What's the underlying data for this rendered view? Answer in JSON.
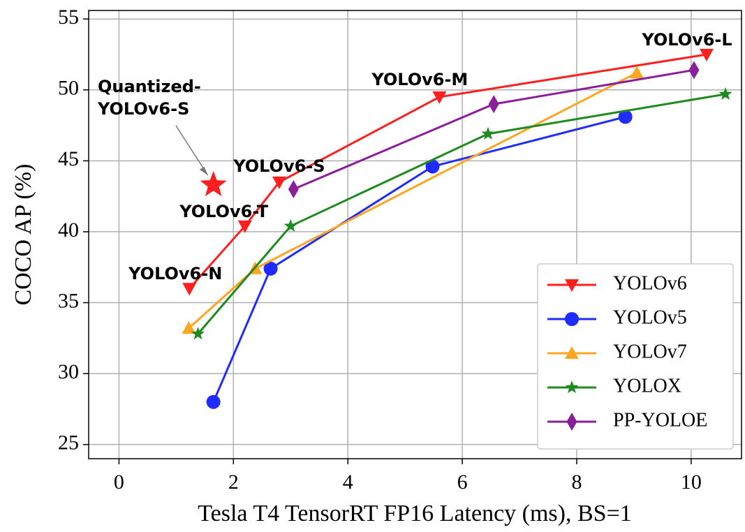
{
  "chart_data": {
    "type": "line",
    "xlabel": "Tesla T4 TensorRT FP16 Latency (ms), BS=1",
    "ylabel": "COCO AP (%)",
    "xlim": [
      -0.53,
      10.88
    ],
    "xticks": [
      0,
      2,
      4,
      6,
      8,
      10
    ],
    "ylim": [
      24,
      55.6
    ],
    "yticks": [
      25,
      30,
      35,
      40,
      45,
      50,
      55
    ],
    "grid": true,
    "legend": "lower right",
    "series": [
      {
        "name": "YOLOv6",
        "color": "#ff1f1f",
        "marker": "triangle-down",
        "x": [
          1.23,
          2.2,
          2.8,
          5.6,
          10.27
        ],
        "values": [
          36.0,
          40.4,
          43.5,
          49.5,
          52.5
        ]
      },
      {
        "name": "YOLOv5",
        "color": "#1f2cff",
        "marker": "circle",
        "x": [
          1.65,
          2.65,
          5.48,
          8.85
        ],
        "values": [
          28.0,
          37.4,
          44.6,
          48.1
        ]
      },
      {
        "name": "YOLOv7",
        "color": "#ffa51f",
        "marker": "triangle-up",
        "x": [
          1.22,
          2.38,
          9.05
        ],
        "values": [
          33.2,
          37.4,
          51.2
        ]
      },
      {
        "name": "YOLOX",
        "color": "#1f8a1f",
        "marker": "star",
        "x": [
          1.38,
          3.0,
          6.45,
          10.6
        ],
        "values": [
          32.8,
          40.4,
          46.9,
          49.7
        ]
      },
      {
        "name": "PP-YOLOE",
        "color": "#8a1f9a",
        "marker": "diamond",
        "x": [
          3.05,
          6.55,
          10.05
        ],
        "values": [
          43.0,
          49.0,
          51.4
        ]
      }
    ],
    "annotations": [
      "YOLOv6-N",
      "YOLOv6-T",
      "YOLOv6-S",
      "YOLOv6-M",
      "YOLOv6-L"
    ],
    "quantized": {
      "text": [
        "Quantized-",
        "YOLOv6-S"
      ],
      "x": 1.65,
      "y": 43.3,
      "color": "#ff1f1f"
    }
  }
}
